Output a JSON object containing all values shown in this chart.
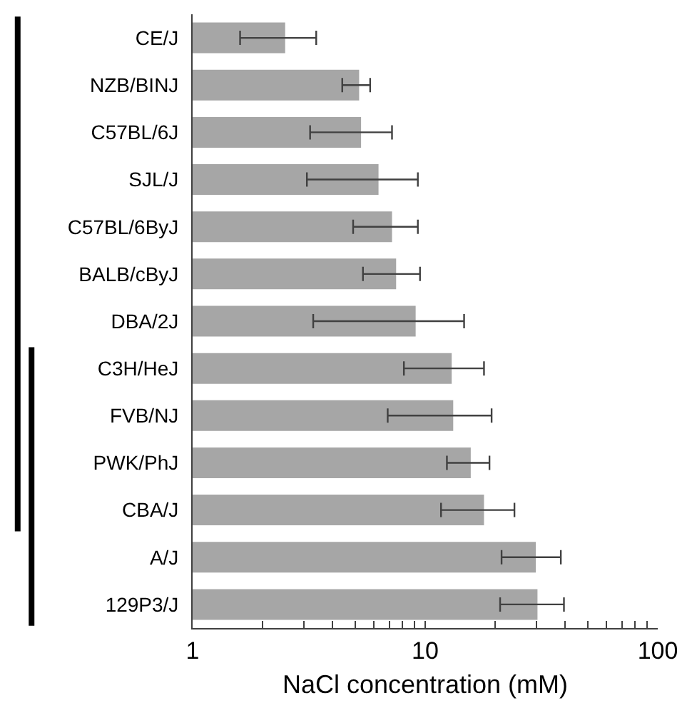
{
  "chart_data": {
    "type": "bar",
    "orientation": "horizontal",
    "xlabel": "NaCl concentration (mM)",
    "categories": [
      "CE/J",
      "NZB/BINJ",
      "C57BL/6J",
      "SJL/J",
      "C57BL/6ByJ",
      "BALB/cByJ",
      "DBA/2J",
      "C3H/HeJ",
      "FVB/NJ",
      "PWK/PhJ",
      "CBA/J",
      "A/J",
      "129P3/J"
    ],
    "values": [
      2.5,
      5.2,
      5.3,
      6.3,
      7.2,
      7.5,
      9.1,
      13.0,
      13.2,
      15.7,
      17.9,
      29.9,
      30.4
    ],
    "errors": [
      [
        1.6,
        3.4
      ],
      [
        4.4,
        5.8
      ],
      [
        3.2,
        7.2
      ],
      [
        3.1,
        9.3
      ],
      [
        4.9,
        9.3
      ],
      [
        5.4,
        9.5
      ],
      [
        3.3,
        14.7
      ],
      [
        8.1,
        17.9
      ],
      [
        6.9,
        19.3
      ],
      [
        12.4,
        18.9
      ],
      [
        11.7,
        24.2
      ],
      [
        21.3,
        38.3
      ],
      [
        21.0,
        39.5
      ]
    ],
    "color": "#a6a6a6",
    "log": "x",
    "xlim": [
      1,
      100
    ],
    "xticks": [
      1,
      {
        "value": 2,
        "label": null
      },
      {
        "value": 3,
        "label": null
      },
      {
        "value": 4,
        "label": null
      },
      {
        "value": 5,
        "label": null
      },
      {
        "value": 6,
        "label": null
      },
      {
        "value": 7,
        "label": null
      },
      {
        "value": 8,
        "label": null
      },
      {
        "value": 9,
        "label": null
      },
      10,
      {
        "value": 20,
        "label": null
      },
      {
        "value": 30,
        "label": null
      },
      {
        "value": 40,
        "label": null
      },
      {
        "value": 50,
        "label": null
      },
      {
        "value": 60,
        "label": null
      },
      {
        "value": 70,
        "label": null
      },
      {
        "value": 80,
        "label": null
      },
      {
        "value": 90,
        "label": null
      },
      100
    ],
    "legend": false
  }
}
